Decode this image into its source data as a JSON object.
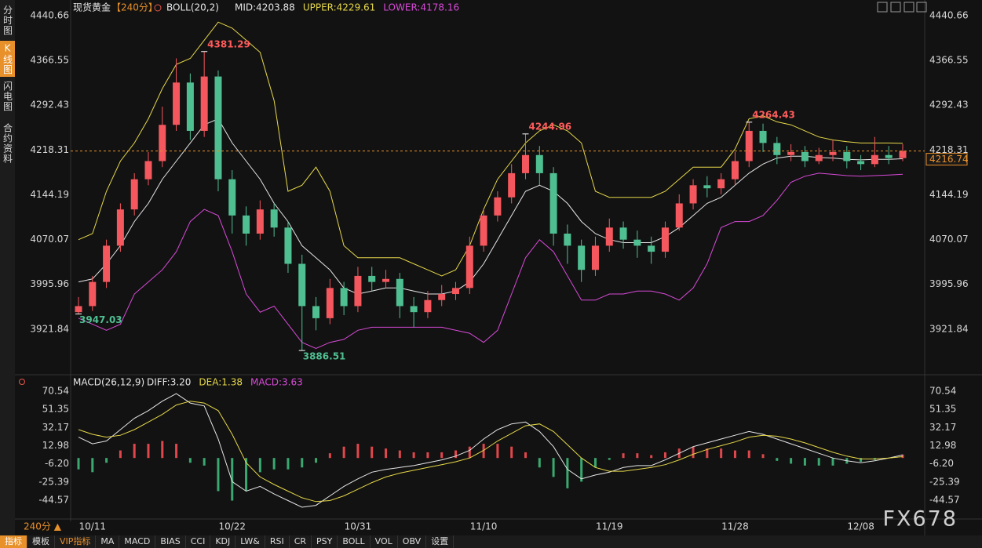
{
  "chart_data": [
    {
      "type": "candlestick",
      "title": "现货黄金",
      "subtitle": "【240分】",
      "indicator": "BOLL(20,2)",
      "categories": [
        null,
        "10/11",
        null,
        null,
        null,
        null,
        null,
        null,
        null,
        null,
        null,
        "10/22",
        null,
        null,
        null,
        null,
        null,
        null,
        null,
        null,
        "10/31",
        null,
        null,
        null,
        null,
        null,
        null,
        null,
        null,
        "11/10",
        null,
        null,
        null,
        null,
        null,
        null,
        null,
        null,
        "11/19",
        null,
        null,
        null,
        null,
        null,
        null,
        null,
        null,
        "11/28",
        null,
        null,
        null,
        null,
        null,
        null,
        null,
        null,
        "12/08",
        null,
        null,
        null
      ],
      "open": [
        3950,
        3960,
        4000,
        4060,
        4120,
        4170,
        4200,
        4260,
        4330,
        4250,
        4340,
        4170,
        4110,
        4080,
        4120,
        4090,
        4030,
        3960,
        3940,
        3990,
        3960,
        4010,
        4000,
        4005,
        3960,
        3950,
        3970,
        3980,
        3990,
        4060,
        4110,
        4140,
        4180,
        4210,
        4180,
        4080,
        4060,
        4020,
        4060,
        4090,
        4070,
        4060,
        4050,
        4090,
        4130,
        4160,
        4155,
        4170,
        4200,
        4250,
        4230,
        4210,
        4215,
        4200,
        4210,
        4215,
        4200,
        4195,
        4210,
        4205
      ],
      "high": [
        3975,
        4010,
        4070,
        4130,
        4180,
        4215,
        4290,
        4370,
        4345,
        4381.29,
        4350,
        4185,
        4125,
        4135,
        4130,
        4100,
        4045,
        3975,
        4005,
        4000,
        4025,
        4025,
        4020,
        4015,
        3975,
        3985,
        3995,
        4000,
        4075,
        4120,
        4150,
        4195,
        4244.96,
        4225,
        4190,
        4095,
        4070,
        4075,
        4105,
        4100,
        4085,
        4075,
        4100,
        4145,
        4170,
        4175,
        4180,
        4215,
        4264.43,
        4262,
        4240,
        4228,
        4225,
        4222,
        4235,
        4225,
        4210,
        4240,
        4225,
        4228
      ],
      "low": [
        3947.03,
        3952,
        3990,
        4050,
        4110,
        4160,
        4190,
        4250,
        4235,
        4240,
        4150,
        4080,
        4060,
        4070,
        4075,
        4015,
        3886.51,
        3920,
        3930,
        3945,
        3950,
        3985,
        3990,
        3940,
        3925,
        3940,
        3960,
        3970,
        3980,
        4050,
        4100,
        4130,
        4170,
        4160,
        4060,
        4030,
        4000,
        4010,
        4050,
        4055,
        4040,
        4030,
        4040,
        4085,
        4120,
        4140,
        4145,
        4160,
        4190,
        4215,
        4195,
        4200,
        4190,
        4195,
        4200,
        4188,
        4185,
        4190,
        4195,
        4200
      ],
      "close": [
        3960,
        4000,
        4060,
        4120,
        4170,
        4200,
        4260,
        4330,
        4250,
        4340,
        4170,
        4110,
        4080,
        4120,
        4090,
        4030,
        3960,
        3940,
        3990,
        3960,
        4010,
        4000,
        4005,
        3960,
        3950,
        3970,
        3980,
        3990,
        4060,
        4110,
        4140,
        4180,
        4210,
        4180,
        4080,
        4060,
        4020,
        4060,
        4090,
        4070,
        4060,
        4050,
        4090,
        4130,
        4160,
        4155,
        4170,
        4200,
        4250,
        4230,
        4210,
        4215,
        4200,
        4210,
        4215,
        4200,
        4195,
        4210,
        4205,
        4216.74
      ],
      "high_labels": [
        null,
        null,
        null,
        null,
        null,
        null,
        null,
        null,
        null,
        "4381.29",
        null,
        null,
        null,
        null,
        null,
        null,
        null,
        null,
        null,
        null,
        null,
        null,
        null,
        null,
        null,
        null,
        null,
        null,
        null,
        null,
        null,
        null,
        "4244.96",
        null,
        null,
        null,
        null,
        null,
        null,
        null,
        null,
        null,
        null,
        null,
        null,
        null,
        null,
        null,
        "4264.43",
        null,
        null,
        null,
        null,
        null,
        null,
        null,
        null,
        null,
        null,
        null
      ],
      "low_labels": [
        "3947.03",
        null,
        null,
        null,
        null,
        null,
        null,
        null,
        null,
        null,
        null,
        null,
        null,
        null,
        null,
        null,
        "3886.51",
        null,
        null,
        null,
        null,
        null,
        null,
        null,
        null,
        null,
        null,
        null,
        null,
        null,
        null,
        null,
        null,
        null,
        null,
        null,
        null,
        null,
        null,
        null,
        null,
        null,
        null,
        null,
        null,
        null,
        null,
        null,
        null,
        null,
        null,
        null,
        null,
        null,
        null,
        null,
        null,
        null,
        null,
        null
      ],
      "up_color": "#f4575d",
      "down_color": "#4fbf92",
      "last_price_color": "#e8902a",
      "series": [
        {
          "legend_label": "MID:4203.88",
          "color": "#e6e6e6",
          "values": [
            4000,
            4005,
            4030,
            4060,
            4100,
            4130,
            4170,
            4200,
            4230,
            4260,
            4270,
            4230,
            4200,
            4170,
            4130,
            4100,
            4060,
            4040,
            4020,
            3990,
            3980,
            3985,
            3990,
            3990,
            3985,
            3980,
            3980,
            3985,
            4000,
            4030,
            4070,
            4110,
            4150,
            4160,
            4150,
            4130,
            4100,
            4080,
            4070,
            4065,
            4065,
            4065,
            4075,
            4090,
            4110,
            4130,
            4140,
            4160,
            4180,
            4195,
            4205,
            4208,
            4208,
            4206,
            4205,
            4203,
            4202,
            4203,
            4203,
            4203.88
          ]
        },
        {
          "legend_label": "UPPER:4229.61",
          "color": "#e6d84a",
          "values": [
            4070,
            4080,
            4150,
            4200,
            4230,
            4270,
            4320,
            4360,
            4370,
            4400,
            4430,
            4420,
            4400,
            4380,
            4300,
            4150,
            4160,
            4190,
            4150,
            4060,
            4040,
            4040,
            4040,
            4040,
            4030,
            4020,
            4010,
            4020,
            4060,
            4120,
            4170,
            4200,
            4230,
            4250,
            4260,
            4250,
            4230,
            4150,
            4140,
            4140,
            4140,
            4140,
            4150,
            4170,
            4190,
            4190,
            4190,
            4220,
            4270,
            4275,
            4265,
            4260,
            4250,
            4240,
            4235,
            4232,
            4230,
            4230,
            4230,
            4229.61
          ]
        },
        {
          "legend_label": "LOWER:4178.16",
          "color": "#d84ad8",
          "values": [
            3940,
            3930,
            3920,
            3930,
            3980,
            4000,
            4020,
            4050,
            4100,
            4120,
            4110,
            4050,
            3980,
            3950,
            3960,
            3930,
            3900,
            3890,
            3900,
            3905,
            3920,
            3925,
            3925,
            3925,
            3925,
            3925,
            3925,
            3920,
            3915,
            3900,
            3920,
            3980,
            4040,
            4070,
            4050,
            4010,
            3970,
            3970,
            3980,
            3980,
            3985,
            3985,
            3980,
            3970,
            3990,
            4030,
            4090,
            4100,
            4100,
            4110,
            4135,
            4165,
            4175,
            4180,
            4178,
            4176,
            4175,
            4176,
            4177,
            4178.16
          ]
        }
      ],
      "ylim": [
        3856.8,
        4440.66
      ],
      "yticks": [
        4440.66,
        4366.55,
        4292.43,
        4218.31,
        4144.19,
        4070.07,
        3995.96,
        3921.84
      ],
      "grid": false,
      "tick_labels_both_sides": true
    },
    {
      "type": "macd",
      "indicator": "MACD(26,12,9)",
      "up_color": "#e0474c",
      "down_color": "#3aa86f",
      "series": [
        {
          "legend_label": "DIFF:3.20",
          "color": "#e6e6e6",
          "values": [
            22,
            15,
            18,
            30,
            42,
            50,
            60,
            68,
            58,
            55,
            20,
            -25,
            -35,
            -30,
            -38,
            -45,
            -52,
            -50,
            -40,
            -30,
            -22,
            -15,
            -12,
            -10,
            -8,
            -5,
            -2,
            2,
            8,
            20,
            30,
            36,
            38,
            28,
            12,
            -12,
            -22,
            -18,
            -15,
            -10,
            -8,
            -8,
            -2,
            5,
            12,
            16,
            20,
            24,
            28,
            25,
            20,
            15,
            10,
            5,
            0,
            -3,
            -5,
            -3,
            0,
            3.2
          ]
        },
        {
          "legend_label": "DEA:1.38",
          "color": "#e6d84a",
          "values": [
            30,
            25,
            22,
            24,
            30,
            38,
            46,
            56,
            60,
            58,
            50,
            25,
            -5,
            -20,
            -28,
            -35,
            -42,
            -46,
            -45,
            -40,
            -33,
            -26,
            -20,
            -16,
            -13,
            -10,
            -7,
            -4,
            0,
            8,
            18,
            26,
            34,
            36,
            28,
            14,
            0,
            -10,
            -14,
            -14,
            -12,
            -10,
            -7,
            -2,
            4,
            9,
            13,
            17,
            22,
            24,
            23,
            20,
            16,
            11,
            6,
            2,
            -1,
            -1,
            0,
            1.38
          ]
        },
        {
          "legend_label": "MACD:3.63",
          "color": "#d84ad8",
          "type": "bar",
          "values": [
            -12,
            -15,
            -5,
            8,
            15,
            15,
            18,
            15,
            -5,
            -8,
            -35,
            -45,
            -35,
            -15,
            -12,
            -12,
            -10,
            -5,
            5,
            12,
            15,
            12,
            10,
            8,
            6,
            6,
            6,
            8,
            12,
            15,
            15,
            12,
            6,
            -10,
            -20,
            -32,
            -25,
            -10,
            -2,
            5,
            5,
            3,
            6,
            10,
            12,
            10,
            10,
            8,
            8,
            4,
            -3,
            -6,
            -8,
            -8,
            -8,
            -6,
            -4,
            -2,
            0,
            3.63
          ]
        }
      ],
      "ylim": [
        -62.76,
        76.33
      ],
      "yticks": [
        70.54,
        51.35,
        32.17,
        12.98,
        {
          "value": -6.2,
          "label": "-6.20"
        },
        -25.39,
        -44.57
      ],
      "grid": false,
      "tick_labels_both_sides": true
    }
  ],
  "sidebar": [
    "分时图",
    "K线图",
    "闪电图",
    "合约资料"
  ],
  "period": "240分 ▲",
  "toolbar": [
    "指标",
    "模板",
    "VIP指标",
    "MA",
    "MACD",
    "BIAS",
    "CCI",
    "KDJ",
    "LW&",
    "RSI",
    "CR",
    "PSY",
    "BOLL",
    "VOL",
    "OBV",
    "设置"
  ],
  "watermark": "FX678"
}
